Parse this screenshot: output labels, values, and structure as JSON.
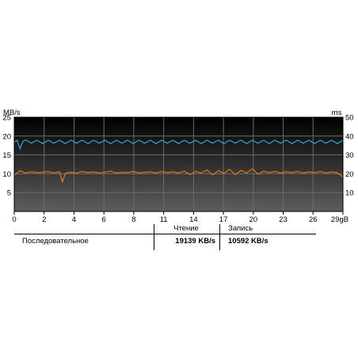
{
  "chart_data": {
    "type": "line",
    "y_left_label": "MB/s",
    "y_right_label": "ms",
    "y_left_ticks": [
      "5",
      "10",
      "15",
      "20",
      "25"
    ],
    "y_right_ticks": [
      "10",
      "20",
      "30",
      "40",
      "50"
    ],
    "x_ticks": [
      "0",
      "2",
      "4",
      "6",
      "8",
      "11",
      "14",
      "17",
      "20",
      "23",
      "26",
      "29gB"
    ],
    "ylim_left": [
      0,
      25
    ],
    "ylim_right": [
      0,
      50
    ],
    "xlim": [
      0,
      29
    ],
    "grid": true,
    "series": [
      {
        "axis": "left",
        "color": "#2fa6d6",
        "x": [
          0,
          0.25,
          0.5,
          0.75,
          1,
          1.5,
          2,
          2.5,
          3,
          3.5,
          4,
          4.5,
          5,
          5.5,
          6,
          6.5,
          7,
          7.5,
          8,
          8.5,
          9,
          9.5,
          10,
          10.5,
          11,
          11.5,
          12,
          12.5,
          13,
          13.5,
          14,
          14.5,
          15,
          15.5,
          16,
          16.5,
          17,
          17.5,
          18,
          18.5,
          19,
          19.5,
          20,
          20.5,
          21,
          21.5,
          22,
          22.5,
          23,
          23.5,
          24,
          24.5,
          25,
          25.5,
          26,
          26.5,
          27,
          27.5,
          28,
          28.5,
          29
        ],
        "values": [
          18.4,
          18.9,
          16.6,
          18.5,
          19.0,
          18.1,
          18.9,
          18.0,
          18.9,
          18.1,
          18.9,
          18.0,
          18.9,
          18.1,
          18.9,
          18.0,
          18.9,
          18.1,
          18.9,
          18.0,
          18.9,
          18.1,
          18.9,
          18.0,
          18.9,
          18.1,
          18.9,
          18.0,
          18.9,
          18.1,
          18.9,
          18.0,
          18.9,
          18.1,
          18.9,
          18.0,
          18.9,
          18.1,
          18.9,
          18.0,
          18.9,
          18.1,
          18.9,
          18.0,
          18.9,
          18.1,
          18.9,
          18.0,
          18.9,
          18.1,
          18.9,
          18.0,
          18.9,
          18.1,
          18.9,
          18.0,
          18.9,
          18.1,
          18.9,
          18.0,
          18.9
        ]
      },
      {
        "axis": "left",
        "color": "#e07a10",
        "x": [
          0,
          0.5,
          1,
          1.5,
          2,
          2.5,
          3,
          3.5,
          4,
          4.25,
          4.5,
          5,
          5.5,
          6,
          6.5,
          7,
          7.5,
          8,
          8.5,
          9,
          9.5,
          10,
          10.5,
          11,
          11.5,
          12,
          12.5,
          13,
          13.5,
          14,
          14.5,
          15,
          15.5,
          16,
          16.5,
          17,
          17.5,
          18,
          18.5,
          19,
          19.5,
          20,
          20.5,
          21,
          21.5,
          22,
          22.5,
          23,
          23.5,
          24,
          24.5,
          25,
          25.5,
          26,
          26.5,
          27,
          27.5,
          28,
          28.5,
          29
        ],
        "values": [
          9.6,
          10.8,
          10.2,
          10.5,
          10.3,
          10.4,
          10.6,
          10.2,
          10.5,
          7.8,
          10.1,
          10.4,
          10.2,
          10.6,
          10.3,
          10.5,
          10.2,
          10.4,
          10.7,
          10.2,
          10.4,
          10.3,
          10.6,
          10.2,
          10.4,
          10.5,
          10.2,
          10.6,
          10.3,
          10.5,
          10.2,
          10.7,
          9.8,
          10.6,
          10.2,
          11.0,
          9.7,
          10.8,
          10.1,
          11.2,
          9.8,
          10.9,
          10.2,
          11.3,
          9.9,
          10.7,
          10.3,
          10.6,
          10.2,
          10.5,
          10.3,
          10.6,
          10.2,
          10.5,
          10.3,
          10.6,
          10.2,
          10.5,
          10.3,
          9.1
        ]
      }
    ]
  },
  "results_table": {
    "read_header": "Чтение",
    "write_header": "Запись",
    "row_label": "Последовательное",
    "read_value": "19139 KB/s",
    "write_value": "10592 KB/s"
  },
  "colors": {
    "plot_bg_top": "#000000",
    "plot_bg_bottom": "#5a5a5a",
    "grid": "#6a6a6a",
    "read_line": "#2fa6d6",
    "write_line": "#e07a10"
  }
}
